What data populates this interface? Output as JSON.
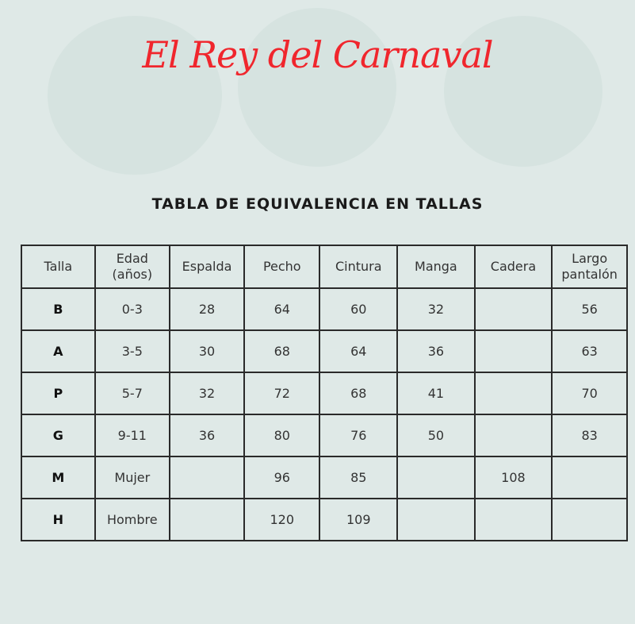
{
  "logo": "El Rey del Carnaval",
  "heading": "TABLA DE EQUIVALENCIA EN TALLAS",
  "table": {
    "headers": [
      "Talla",
      "Edad (años)",
      "Espalda",
      "Pecho",
      "Cintura",
      "Manga",
      "Cadera",
      "Largo pantalón"
    ],
    "rows": [
      [
        "B",
        "0-3",
        "28",
        "64",
        "60",
        "32",
        "",
        "56"
      ],
      [
        "A",
        "3-5",
        "30",
        "68",
        "64",
        "36",
        "",
        "63"
      ],
      [
        "P",
        "5-7",
        "32",
        "72",
        "68",
        "41",
        "",
        "70"
      ],
      [
        "G",
        "9-11",
        "36",
        "80",
        "76",
        "50",
        "",
        "83"
      ],
      [
        "M",
        "Mujer",
        "",
        "96",
        "85",
        "",
        "108",
        ""
      ],
      [
        "H",
        "Hombre",
        "",
        "120",
        "109",
        "",
        "",
        ""
      ]
    ]
  }
}
